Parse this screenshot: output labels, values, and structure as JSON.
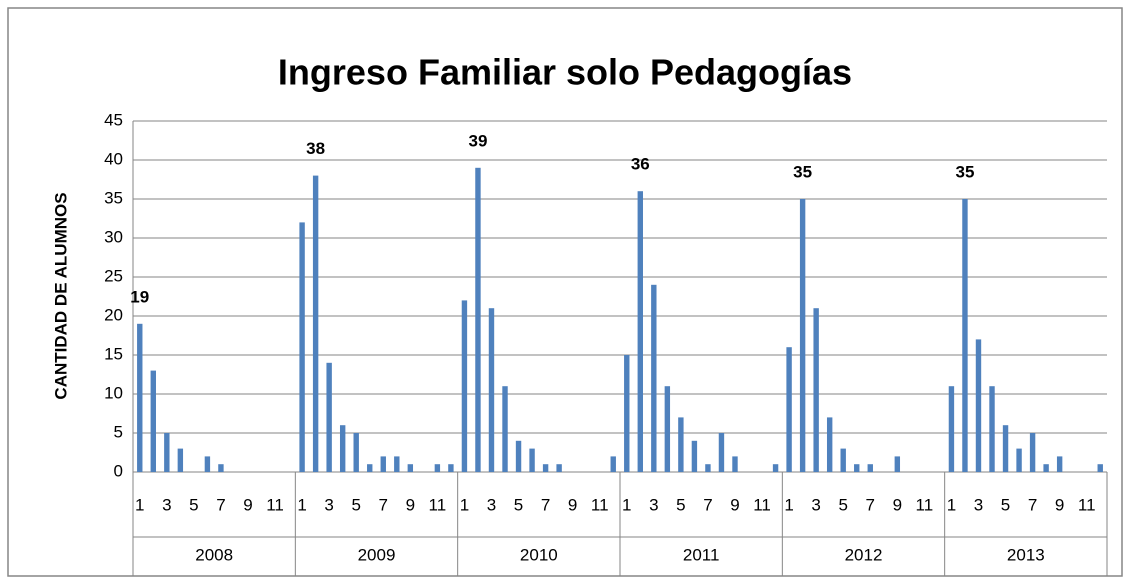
{
  "chart_data": {
    "type": "bar",
    "title": "Ingreso Familiar solo Pedagogías",
    "y_label": "CANTIDAD DE ALUMNOS",
    "categories": [
      "1",
      null,
      "3",
      null,
      "5",
      null,
      "7",
      null,
      "9",
      null,
      "11",
      null
    ],
    "color": "#4f81bd",
    "grid": true,
    "ylim": [
      0,
      45
    ],
    "yticks": [
      0,
      5,
      10,
      15,
      20,
      25,
      30,
      35,
      40,
      45
    ],
    "series": [
      {
        "name": "2008",
        "values": [
          19,
          13,
          5,
          3,
          0,
          2,
          1,
          0,
          0,
          0,
          0,
          0
        ],
        "value_labels": [
          "19",
          null,
          null,
          null,
          null,
          null,
          null,
          null,
          null,
          null,
          null,
          null
        ]
      },
      {
        "name": "2009",
        "values": [
          32,
          38,
          14,
          6,
          5,
          1,
          2,
          2,
          1,
          0,
          1,
          1
        ],
        "value_labels": [
          null,
          "38",
          null,
          null,
          null,
          null,
          null,
          null,
          null,
          null,
          null,
          null
        ]
      },
      {
        "name": "2010",
        "values": [
          22,
          39,
          21,
          11,
          4,
          3,
          1,
          1,
          0,
          0,
          0,
          2
        ],
        "value_labels": [
          null,
          "39",
          null,
          null,
          null,
          null,
          null,
          null,
          null,
          null,
          null,
          null
        ]
      },
      {
        "name": "2011",
        "values": [
          15,
          36,
          24,
          11,
          7,
          4,
          1,
          5,
          2,
          0,
          0,
          1
        ],
        "value_labels": [
          null,
          "36",
          null,
          null,
          null,
          null,
          null,
          null,
          null,
          null,
          null,
          null
        ]
      },
      {
        "name": "2012",
        "values": [
          16,
          35,
          21,
          7,
          3,
          1,
          1,
          0,
          2,
          0,
          0,
          0
        ],
        "value_labels": [
          null,
          "35",
          null,
          null,
          null,
          null,
          null,
          null,
          null,
          null,
          null,
          null
        ]
      },
      {
        "name": "2013",
        "values": [
          11,
          35,
          17,
          11,
          6,
          3,
          5,
          1,
          2,
          0,
          0,
          1
        ],
        "value_labels": [
          null,
          "35",
          null,
          null,
          null,
          null,
          null,
          null,
          null,
          null,
          null,
          null
        ]
      }
    ]
  }
}
